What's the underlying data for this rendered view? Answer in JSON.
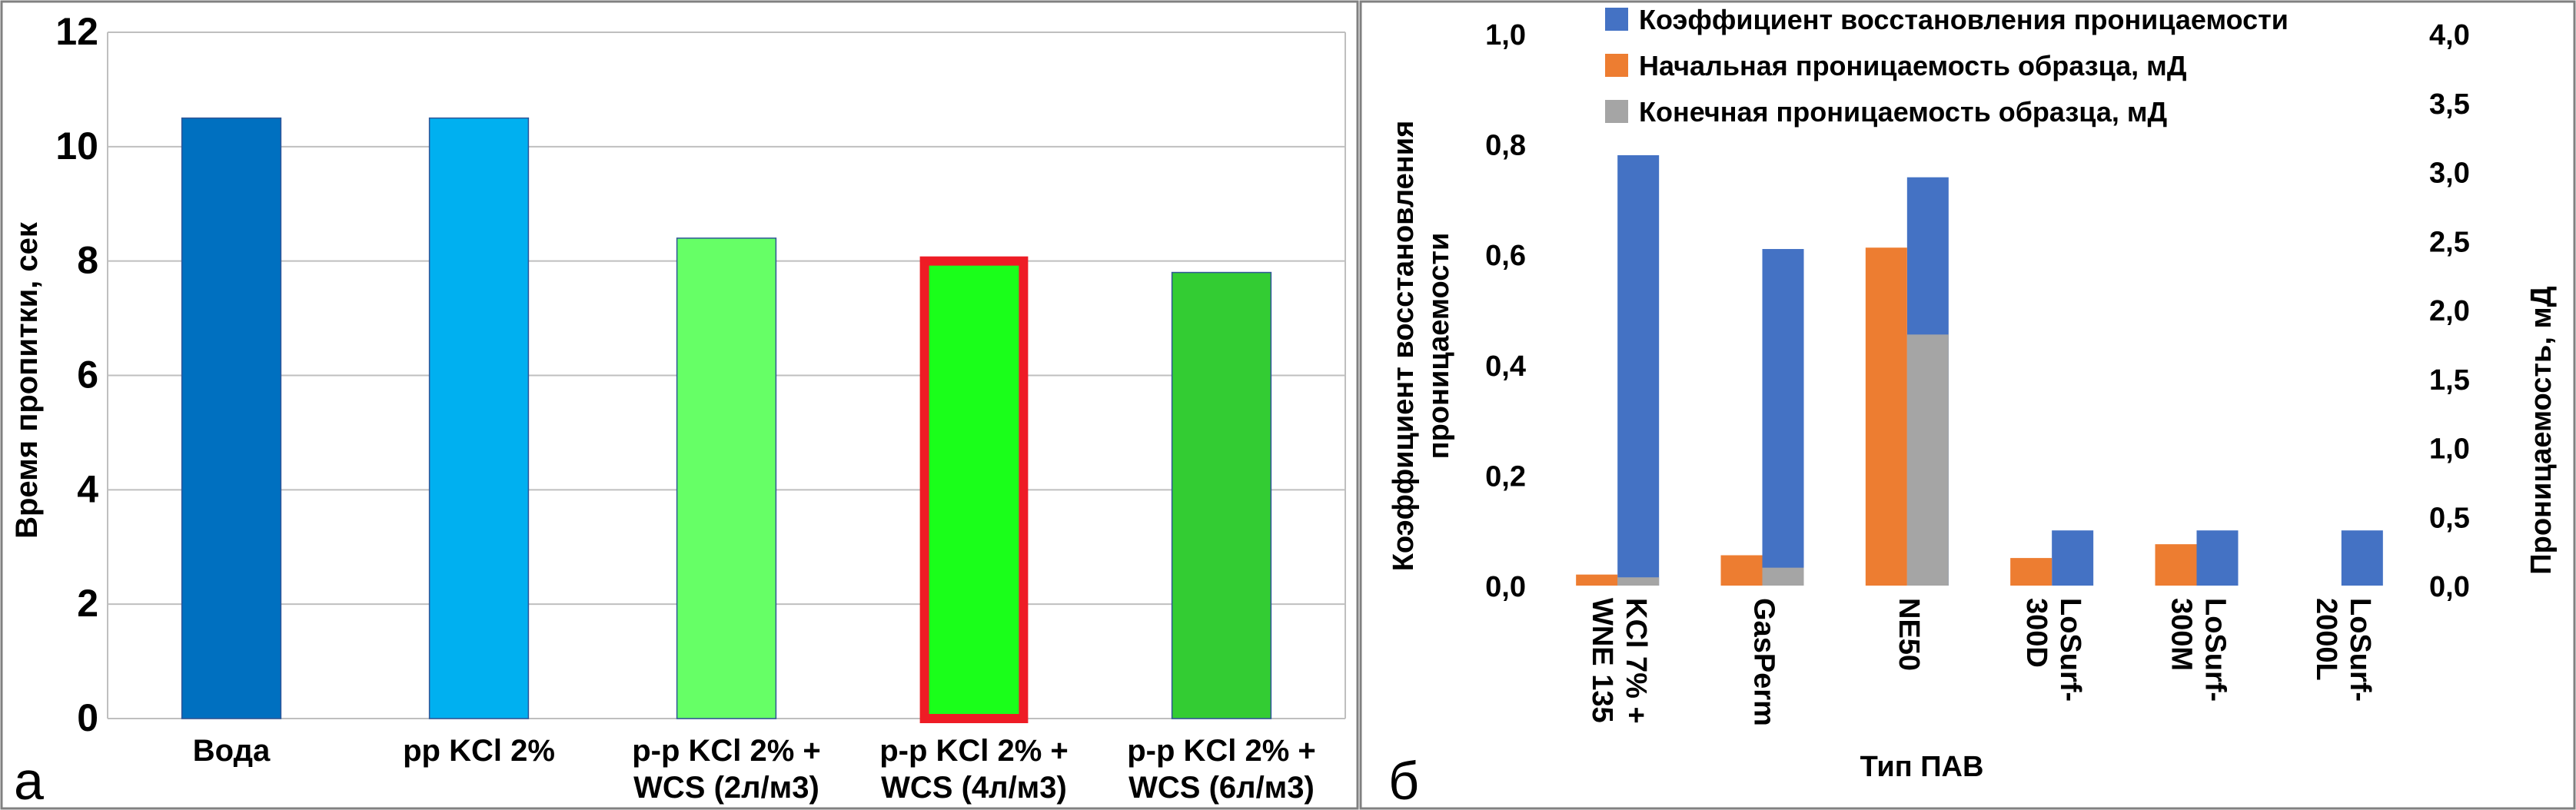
{
  "colors": {
    "water": "#0070c0",
    "kcl": "#00b0f0",
    "wcs2": "#66ff66",
    "wcs4": "#1aff1a",
    "wcs6": "#33cc33",
    "highlight": "#ee1c25",
    "coef": "#4472c4",
    "initial": "#ed7d31",
    "final": "#a5a5a5",
    "grid": "#bfbfbf",
    "frame": "#808080"
  },
  "panels": {
    "a": {
      "letter": "а"
    },
    "b": {
      "letter": "б"
    }
  },
  "chart_data": [
    {
      "id": "a",
      "type": "bar",
      "ylabel": "Время пропитки, сек",
      "xlabel": "",
      "ylim": [
        0,
        12
      ],
      "yticks": [
        "0",
        "2",
        "4",
        "6",
        "8",
        "10",
        "12"
      ],
      "grid": true,
      "categories": [
        [
          "Вода"
        ],
        [
          "pp KCl 2%"
        ],
        [
          "p-p KCl 2% +",
          "WCS (2л/м3)"
        ],
        [
          "p-p KCl 2% +",
          "WCS (4л/м3)"
        ],
        [
          "p-p KCl 2% +",
          "WCS (6л/м3)"
        ]
      ],
      "values": [
        10.5,
        10.5,
        8.4,
        8.0,
        7.8
      ],
      "bar_colors": [
        "#0070c0",
        "#00b0f0",
        "#66ff66",
        "#1aff1a",
        "#33cc33"
      ],
      "highlighted_index": 3
    },
    {
      "id": "b",
      "type": "bar",
      "xlabel": "Тип ПАВ",
      "ylabel_left": [
        "Коэффициент восстановления",
        "проницаемости"
      ],
      "ylabel_right": "Проницаемость, мД",
      "ylim_left": [
        0,
        1.0
      ],
      "ylim_right": [
        0,
        4.0
      ],
      "yticks_left": [
        "0,0",
        "0,2",
        "0,4",
        "0,6",
        "0,8",
        "1,0"
      ],
      "yticks_right": [
        "0,0",
        "0,5",
        "1,0",
        "1,5",
        "2,0",
        "2,5",
        "3,0",
        "3,5",
        "4,0"
      ],
      "grid": false,
      "legend_position": "top",
      "categories": [
        [
          "KCl 7% +",
          "WNE 135"
        ],
        [
          "GasPerm"
        ],
        [
          "NE50"
        ],
        [
          "LoSurf-",
          "300D"
        ],
        [
          "LoSurf-",
          "300M"
        ],
        [
          "LoSurf-",
          "2000L"
        ]
      ],
      "series": [
        {
          "name": "Коэффициент восстановления проницаемости",
          "axis": "left",
          "values": [
            0.78,
            0.61,
            0.74,
            0.1,
            0.1,
            0.1
          ],
          "color": "#4472c4"
        },
        {
          "name": "Начальная проницаемость образца, мД",
          "axis": "right",
          "values": [
            0.08,
            0.22,
            2.45,
            0.2,
            0.3,
            null
          ],
          "color": "#ed7d31"
        },
        {
          "name": "Конечная проницаемость образца, мД",
          "axis": "right",
          "values": [
            0.06,
            0.13,
            1.82,
            null,
            null,
            null
          ],
          "color": "#a5a5a5"
        }
      ]
    }
  ]
}
